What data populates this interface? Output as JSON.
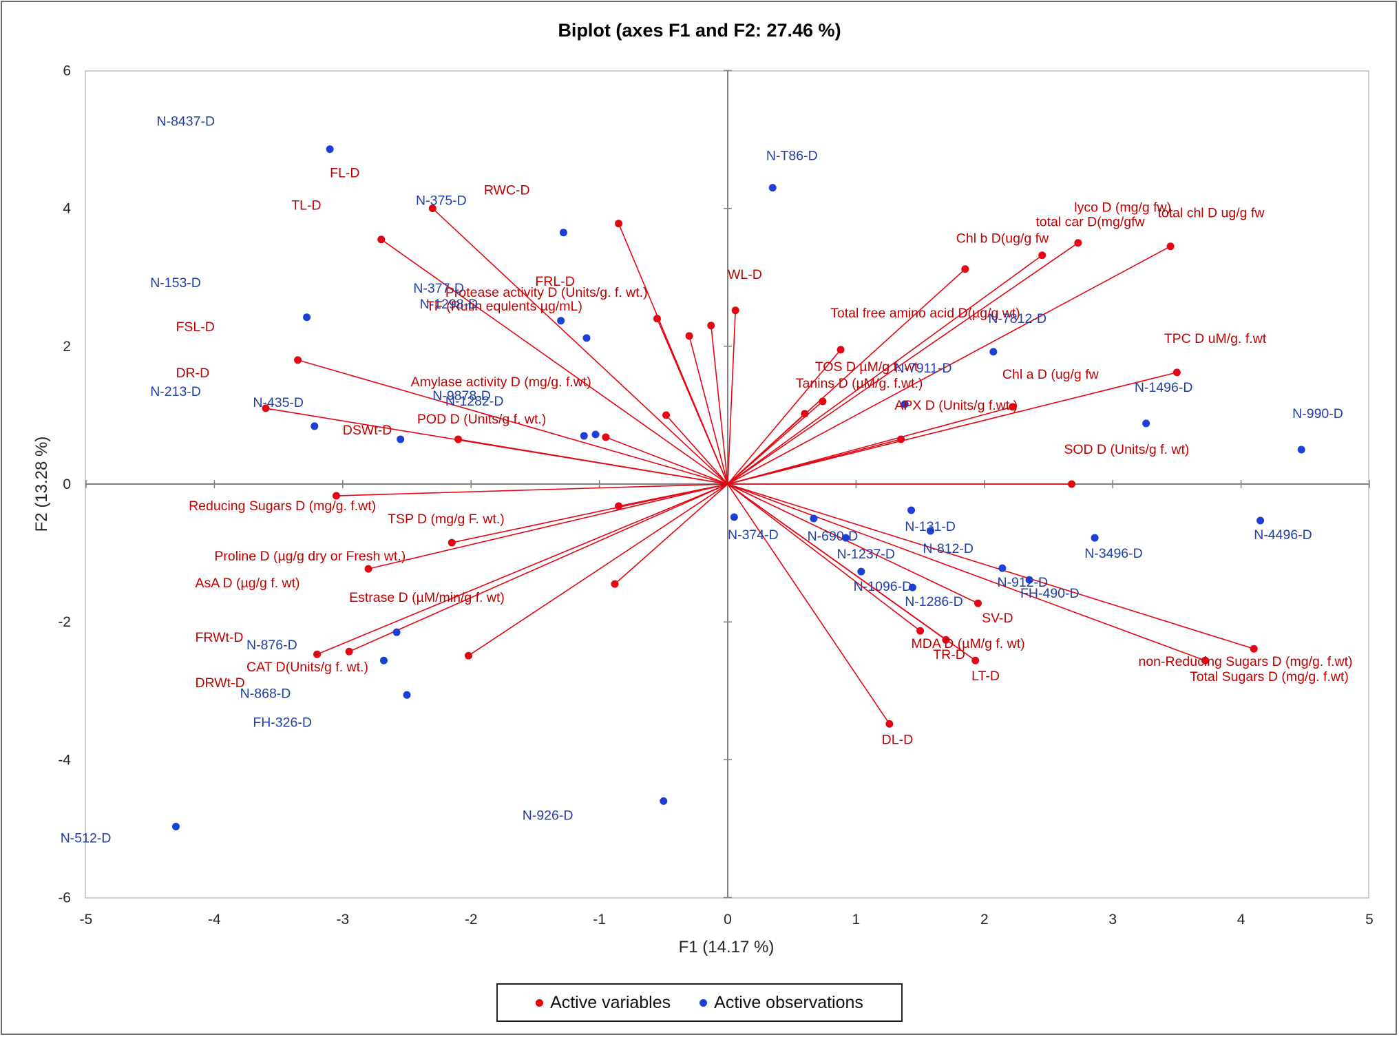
{
  "chart_data": {
    "type": "scatter",
    "subtype": "biplot",
    "title": "Biplot (axes F1 and F2: 27.46 %)",
    "xlabel": "F1 (14.17 %)",
    "ylabel": "F2 (13.28 %)",
    "xlim": [
      -5,
      5
    ],
    "ylim": [
      -6,
      6
    ],
    "xticks": [
      -5,
      -4,
      -3,
      -2,
      -1,
      0,
      1,
      2,
      3,
      4,
      5
    ],
    "yticks": [
      -6,
      -4,
      -2,
      0,
      2,
      4,
      6
    ],
    "colors": {
      "variables": "#e30613",
      "observations": "#1c3fd6",
      "axis": "#7f7f7f"
    },
    "legend": {
      "position": "bottom",
      "items": [
        {
          "label": "Active variables",
          "color": "#e30613"
        },
        {
          "label": "Active observations",
          "color": "#1c3fd6"
        }
      ]
    },
    "variables": [
      {
        "label": "FL-D",
        "x": -2.3,
        "y": 4.0,
        "lx": -3.1,
        "ly": 4.45
      },
      {
        "label": "TL-D",
        "x": -2.7,
        "y": 3.55,
        "lx": -3.4,
        "ly": 3.98
      },
      {
        "label": "RWC-D",
        "x": -0.85,
        "y": 3.78,
        "lx": -1.9,
        "ly": 4.2
      },
      {
        "label": "FRL-D",
        "x": -0.55,
        "y": 2.4,
        "lx": -1.5,
        "ly": 2.88
      },
      {
        "label": "Protease activity D (Units/g. f. wt.)",
        "x": -0.3,
        "y": 2.15,
        "lx": -2.2,
        "ly": 2.72
      },
      {
        "label": "TF (Rutin equlents µg/mL)",
        "x": -0.13,
        "y": 2.3,
        "lx": -2.35,
        "ly": 2.52
      },
      {
        "label": "WL-D",
        "x": 0.06,
        "y": 2.52,
        "lx": 0.0,
        "ly": 2.98
      },
      {
        "label": "FSL-D",
        "x": -3.35,
        "y": 1.8,
        "lx": -4.3,
        "ly": 2.22
      },
      {
        "label": "DR-D",
        "x": -3.6,
        "y": 1.1,
        "lx": -4.3,
        "ly": 1.55
      },
      {
        "label": "DSWt-D",
        "x": -2.1,
        "y": 0.65,
        "lx": -3.0,
        "ly": 0.72
      },
      {
        "label": "Amylase activity D (mg/g. f.wt)",
        "x": -0.48,
        "y": 1.0,
        "lx": -2.47,
        "ly": 1.42
      },
      {
        "label": "POD D (Units/g f. wt.)",
        "x": -0.95,
        "y": 0.68,
        "lx": -2.42,
        "ly": 0.88
      },
      {
        "label": "Reducing Sugars D (mg/g. f.wt)",
        "x": -3.05,
        "y": -0.17,
        "lx": -4.2,
        "ly": -0.38
      },
      {
        "label": "TSP D (mg/g F. wt.)",
        "x": -2.15,
        "y": -0.85,
        "lx": -2.65,
        "ly": -0.57
      },
      {
        "label": "Proline D (µg/g dry or Fresh wt.)",
        "x": -2.8,
        "y": -1.23,
        "lx": -4.0,
        "ly": -1.11
      },
      {
        "label": "AsA D (µg/g f. wt)",
        "x": -0.85,
        "y": -0.32,
        "lx": -4.15,
        "ly": -1.5
      },
      {
        "label": "Estrase D (µM/min/g f. wt)",
        "x": -0.88,
        "y": -1.45,
        "lx": -2.95,
        "ly": -1.71
      },
      {
        "label": "FRWt-D",
        "x": -3.2,
        "y": -2.47,
        "lx": -4.15,
        "ly": -2.29
      },
      {
        "label": "CAT D(Units/g f. wt.)",
        "x": -2.95,
        "y": -2.43,
        "lx": -3.75,
        "ly": -2.72
      },
      {
        "label": "DRWt-D",
        "x": -2.02,
        "y": -2.49,
        "lx": -4.15,
        "ly": -2.95
      },
      {
        "label": "Chl b D(ug/g fw",
        "x": 1.85,
        "y": 3.12,
        "lx": 1.78,
        "ly": 3.5
      },
      {
        "label": "lyco D (mg/g fw)",
        "x": 2.45,
        "y": 3.32,
        "lx": 2.7,
        "ly": 3.95
      },
      {
        "label": "total car D(mg/gfw",
        "x": 2.73,
        "y": 3.5,
        "lx": 2.4,
        "ly": 3.74
      },
      {
        "label": "total chl D ug/g fw",
        "x": 3.45,
        "y": 3.45,
        "lx": 3.35,
        "ly": 3.87
      },
      {
        "label": "Total free amino acid D(µg/g wt)",
        "x": 0.88,
        "y": 1.95,
        "lx": 0.8,
        "ly": 2.42
      },
      {
        "label": "TOS D µM/g f. wt",
        "x": 0.74,
        "y": 1.2,
        "lx": 0.68,
        "ly": 1.64
      },
      {
        "label": "Tanins D (µM/g. f.wt.)",
        "x": 0.6,
        "y": 1.02,
        "lx": 0.53,
        "ly": 1.4
      },
      {
        "label": "Chl a D (ug/g fw",
        "x": 2.22,
        "y": 1.12,
        "lx": 2.14,
        "ly": 1.53
      },
      {
        "label": "APX D (Units/g f.wt.)",
        "x": 1.35,
        "y": 0.65,
        "lx": 1.3,
        "ly": 1.08
      },
      {
        "label": "TPC D uM/g. f.wt",
        "x": 3.5,
        "y": 1.62,
        "lx": 3.4,
        "ly": 2.05
      },
      {
        "label": "SOD D (Units/g f. wt)",
        "x": 2.68,
        "y": 0.0,
        "lx": 2.62,
        "ly": 0.44
      },
      {
        "label": "SV-D",
        "x": 1.95,
        "y": -1.73,
        "lx": 1.98,
        "ly": -2.01
      },
      {
        "label": "MDA D (µM/g f. wt)",
        "x": 1.7,
        "y": -2.26,
        "lx": 1.43,
        "ly": -2.38
      },
      {
        "label": "TR-D",
        "x": 1.5,
        "y": -2.13,
        "lx": 1.6,
        "ly": -2.54
      },
      {
        "label": "LT-D",
        "x": 1.93,
        "y": -2.56,
        "lx": 1.9,
        "ly": -2.85
      },
      {
        "label": "non-Reducing Sugars D (mg/g. f.wt)",
        "x": 3.72,
        "y": -2.56,
        "lx": 3.2,
        "ly": -2.64
      },
      {
        "label": "Total Sugars D (mg/g. f.wt)",
        "x": 4.1,
        "y": -2.39,
        "lx": 3.6,
        "ly": -2.86
      },
      {
        "label": "DL-D",
        "x": 1.26,
        "y": -3.48,
        "lx": 1.2,
        "ly": -3.77
      }
    ],
    "observations": [
      {
        "label": "N-8437-D",
        "x": -3.1,
        "y": 4.86,
        "lx": -4.45,
        "ly": 5.2
      },
      {
        "label": "N-T86-D",
        "x": 0.35,
        "y": 4.3,
        "lx": 0.3,
        "ly": 4.7
      },
      {
        "label": "N-375-D",
        "x": -1.28,
        "y": 3.65,
        "lx": -2.43,
        "ly": 4.05
      },
      {
        "label": "N-153-D",
        "x": -3.28,
        "y": 2.42,
        "lx": -4.5,
        "ly": 2.86
      },
      {
        "label": "N-377-D",
        "x": -1.3,
        "y": 2.37,
        "lx": -2.45,
        "ly": 2.78
      },
      {
        "label": "N-1298-D",
        "x": -1.1,
        "y": 2.12,
        "lx": -2.4,
        "ly": 2.55
      },
      {
        "label": "N-213-D",
        "x": -3.22,
        "y": 0.84,
        "lx": -4.5,
        "ly": 1.28
      },
      {
        "label": "N-435-D",
        "x": -2.55,
        "y": 0.65,
        "lx": -3.7,
        "ly": 1.12
      },
      {
        "label": "N-9878-D",
        "x": -1.12,
        "y": 0.7,
        "lx": -2.3,
        "ly": 1.22
      },
      {
        "label": "N-1282-D",
        "x": -1.03,
        "y": 0.72,
        "lx": -2.2,
        "ly": 1.14
      },
      {
        "label": "N-7911-D",
        "x": 1.38,
        "y": 1.16,
        "lx": 1.3,
        "ly": 1.62
      },
      {
        "label": "N-7812-D",
        "x": 2.07,
        "y": 1.92,
        "lx": 2.03,
        "ly": 2.34
      },
      {
        "label": "N-1496-D",
        "x": 3.26,
        "y": 0.88,
        "lx": 3.17,
        "ly": 1.34
      },
      {
        "label": "N-990-D",
        "x": 4.47,
        "y": 0.5,
        "lx": 4.4,
        "ly": 0.96
      },
      {
        "label": "N-374-D",
        "x": 0.05,
        "y": -0.48,
        "lx": 0.0,
        "ly": -0.8
      },
      {
        "label": "N-690-D",
        "x": 0.67,
        "y": -0.5,
        "lx": 0.62,
        "ly": -0.82
      },
      {
        "label": "N-131-D",
        "x": 1.43,
        "y": -0.38,
        "lx": 1.38,
        "ly": -0.68
      },
      {
        "label": "N-812-D",
        "x": 1.58,
        "y": -0.68,
        "lx": 1.52,
        "ly": -1.0
      },
      {
        "label": "N-1237-D",
        "x": 0.92,
        "y": -0.78,
        "lx": 0.85,
        "ly": -1.08
      },
      {
        "label": "N-1096-D",
        "x": 1.04,
        "y": -1.27,
        "lx": 0.98,
        "ly": -1.55
      },
      {
        "label": "N-1286-D",
        "x": 1.44,
        "y": -1.5,
        "lx": 1.38,
        "ly": -1.77
      },
      {
        "label": "N-912-D",
        "x": 2.14,
        "y": -1.22,
        "lx": 2.1,
        "ly": -1.49
      },
      {
        "label": "FH-490-D",
        "x": 2.35,
        "y": -1.39,
        "lx": 2.28,
        "ly": -1.65
      },
      {
        "label": "N-3496-D",
        "x": 2.86,
        "y": -0.78,
        "lx": 2.78,
        "ly": -1.07
      },
      {
        "label": "N-4496-D",
        "x": 4.15,
        "y": -0.53,
        "lx": 4.1,
        "ly": -0.8
      },
      {
        "label": "N-876-D",
        "x": -2.58,
        "y": -2.15,
        "lx": -3.75,
        "ly": -2.4
      },
      {
        "label": "N-868-D",
        "x": -2.68,
        "y": -2.56,
        "lx": -3.8,
        "ly": -3.1
      },
      {
        "label": "FH-326-D",
        "x": -2.5,
        "y": -3.06,
        "lx": -3.7,
        "ly": -3.52
      },
      {
        "label": "N-926-D",
        "x": -0.5,
        "y": -4.6,
        "lx": -1.6,
        "ly": -4.87
      },
      {
        "label": "N-512-D",
        "x": -4.3,
        "y": -4.97,
        "lx": -5.2,
        "ly": -5.2
      }
    ]
  }
}
